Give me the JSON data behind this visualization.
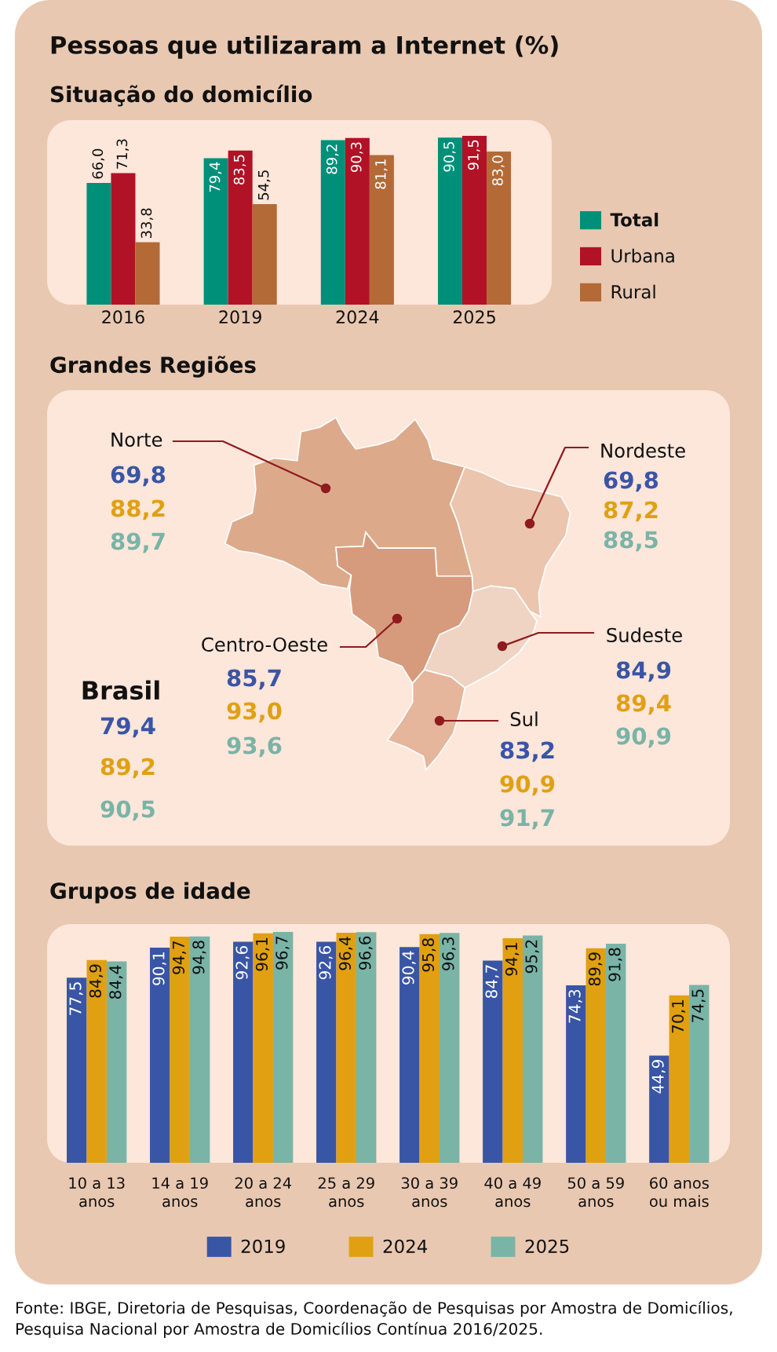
{
  "chart_data": [
    {
      "type": "bar",
      "title": "Pessoas que utilizaram a Internet (%)",
      "subtitle": "Situação do domicílio",
      "categories": [
        "2016",
        "2019",
        "2024",
        "2025"
      ],
      "series": [
        {
          "name": "Total",
          "color": "#00907a",
          "values": [
            66.0,
            79.4,
            89.2,
            90.5
          ],
          "value_labels": [
            "66,0",
            "79,4",
            "89,2",
            "90,5"
          ]
        },
        {
          "name": "Urbana",
          "color": "#b11226",
          "values": [
            71.3,
            83.5,
            90.3,
            91.5
          ],
          "value_labels": [
            "71,3",
            "83,5",
            "90,3",
            "91,5"
          ]
        },
        {
          "name": "Rural",
          "color": "#b36a37",
          "values": [
            33.8,
            54.5,
            81.1,
            83.0
          ],
          "value_labels": [
            "33,8",
            "54,5",
            "81,1",
            "83,0"
          ]
        }
      ],
      "tick_labels": "x",
      "legend": "right"
    },
    {
      "type": "other",
      "title": "Grandes Regiões",
      "categories": [
        "Norte",
        "Nordeste",
        "Centro-Oeste",
        "Sudeste",
        "Sul",
        "Brasil"
      ],
      "series": [
        {
          "color": "#3955a5",
          "values": [
            69.8,
            69.8,
            85.7,
            84.9,
            83.2,
            79.4
          ],
          "value_labels": [
            "69,8",
            "69,8",
            "85,7",
            "84,9",
            "83,2",
            "79,4"
          ]
        },
        {
          "color": "#e0a012",
          "values": [
            88.2,
            87.2,
            93.0,
            89.4,
            90.9,
            89.2
          ],
          "value_labels": [
            "88,2",
            "87,2",
            "93,0",
            "89,4",
            "90,9",
            "89,2"
          ]
        },
        {
          "color": "#79b4a7",
          "values": [
            89.7,
            88.5,
            93.6,
            90.9,
            91.7,
            90.5
          ],
          "value_labels": [
            "89,7",
            "88,5",
            "93,6",
            "90,9",
            "91,7",
            "90,5"
          ]
        }
      ]
    },
    {
      "type": "bar",
      "title": "Grupos de idade",
      "categories": [
        "10 a 13\nanos",
        "14 a 19\nanos",
        "20 a 24\nanos",
        "25 a 29\nanos",
        "30 a 39\nanos",
        "40 a 49\nanos",
        "50 a 59\nanos",
        "60 anos\nou mais"
      ],
      "series": [
        {
          "name": "2019",
          "color": "#3955a5",
          "values": [
            77.5,
            90.1,
            92.6,
            92.6,
            90.4,
            84.7,
            74.3,
            44.9
          ],
          "value_labels": [
            "77,5",
            "90,1",
            "92,6",
            "92,6",
            "90,4",
            "84,7",
            "74,3",
            "44,9"
          ]
        },
        {
          "name": "2024",
          "color": "#e0a012",
          "values": [
            84.9,
            94.7,
            96.1,
            96.4,
            95.8,
            94.1,
            89.9,
            70.1
          ],
          "value_labels": [
            "84,9",
            "94,7",
            "96,1",
            "96,4",
            "95,8",
            "94,1",
            "89,9",
            "70,1"
          ]
        },
        {
          "name": "2025",
          "color": "#79b4a7",
          "values": [
            84.4,
            94.8,
            96.7,
            96.6,
            96.3,
            95.2,
            91.8,
            74.5
          ],
          "value_labels": [
            "84,4",
            "94,8",
            "96,7",
            "96,6",
            "96,3",
            "95,2",
            "91,8",
            "74,5"
          ]
        }
      ],
      "tick_labels": "x",
      "legend": "bottom",
      "annotations": [
        "Fonte: IBGE, Diretoria de Pesquisas, Coordenação de Pesquisas por Amostra de Domicílios, Pesquisa Nacional por Amostra de Domicílios Contínua 2016/2025."
      ]
    }
  ]
}
